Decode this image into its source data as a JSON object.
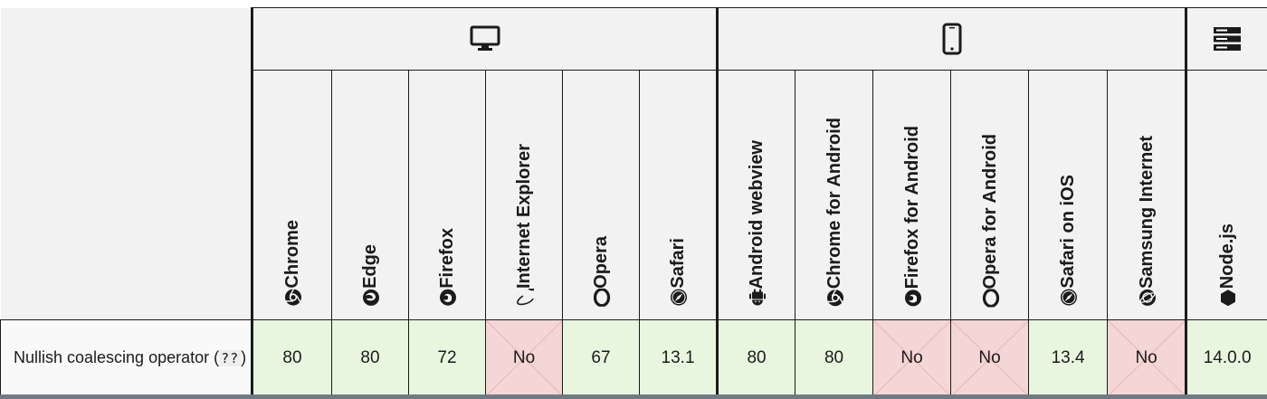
{
  "platforms": {
    "desktop_icon": "desktop-icon",
    "mobile_icon": "mobile-icon",
    "server_icon": "server-icon"
  },
  "browsers": [
    {
      "name": "Chrome",
      "icon": "chrome-icon"
    },
    {
      "name": "Edge",
      "icon": "edge-icon"
    },
    {
      "name": "Firefox",
      "icon": "firefox-icon"
    },
    {
      "name": "Internet Explorer",
      "icon": "ie-icon"
    },
    {
      "name": "Opera",
      "icon": "opera-icon"
    },
    {
      "name": "Safari",
      "icon": "safari-icon"
    },
    {
      "name": "Android webview",
      "icon": "android-icon"
    },
    {
      "name": "Chrome for Android",
      "icon": "chrome-icon"
    },
    {
      "name": "Firefox for Android",
      "icon": "firefox-icon"
    },
    {
      "name": "Opera for Android",
      "icon": "opera-icon"
    },
    {
      "name": "Safari on iOS",
      "icon": "safari-icon"
    },
    {
      "name": "Samsung Internet",
      "icon": "samsung-icon"
    },
    {
      "name": "Node.js",
      "icon": "nodejs-icon"
    }
  ],
  "feature": {
    "label": "Nullish coalescing operator (",
    "code": "??",
    "label_end": ")"
  },
  "support": [
    {
      "value": "80",
      "status": "yes"
    },
    {
      "value": "80",
      "status": "yes"
    },
    {
      "value": "72",
      "status": "yes"
    },
    {
      "value": "No",
      "status": "no"
    },
    {
      "value": "67",
      "status": "yes"
    },
    {
      "value": "13.1",
      "status": "yes"
    },
    {
      "value": "80",
      "status": "yes"
    },
    {
      "value": "80",
      "status": "yes"
    },
    {
      "value": "No",
      "status": "no"
    },
    {
      "value": "No",
      "status": "no"
    },
    {
      "value": "13.4",
      "status": "yes"
    },
    {
      "value": "No",
      "status": "no"
    },
    {
      "value": "14.0.0",
      "status": "yes"
    }
  ],
  "colors": {
    "supported": "#e8f6e0",
    "unsupported": "#f5d6d6",
    "header_bg": "#f2f2f2",
    "border": "#1b1b1b"
  }
}
